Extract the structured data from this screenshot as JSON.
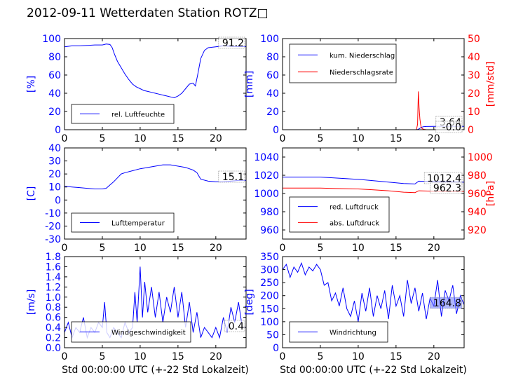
{
  "figure": {
    "title": "2012-09-11 Wetterdaten Station ROTZ□"
  },
  "colors": {
    "primary": "#0000ff",
    "secondary": "#ff0000",
    "axis": "#000000",
    "background": "#ffffff"
  },
  "chart_data": [
    {
      "id": "humidity",
      "type": "line",
      "xlim": [
        0,
        24
      ],
      "xticks": [
        0,
        5,
        10,
        15,
        20
      ],
      "ylim": [
        0,
        100
      ],
      "yticks": [
        0,
        20,
        40,
        60,
        80,
        100
      ],
      "ylabel": "[%]",
      "xlabel": "",
      "grid": false,
      "legend": "lower-left",
      "value_box": "91.2",
      "series": [
        {
          "name": "rel. Luftfeuchte",
          "color": "#0000ff",
          "axis": "left",
          "x": [
            0,
            1,
            2,
            3,
            4,
            5,
            5.5,
            6,
            6.3,
            6.6,
            7,
            7.5,
            8,
            8.5,
            9,
            9.5,
            10,
            10.5,
            11,
            11.5,
            12,
            12.5,
            13,
            13.5,
            14,
            14.5,
            15,
            15.5,
            16,
            16.5,
            17,
            17.3,
            17.6,
            18,
            18.5,
            19,
            20,
            21,
            22,
            23,
            24
          ],
          "y": [
            91,
            92,
            92,
            92.5,
            93,
            93,
            94,
            93.5,
            90,
            83,
            75,
            68,
            61,
            55,
            50,
            47,
            45,
            43,
            42,
            41,
            40,
            39,
            38,
            37,
            36,
            35,
            37,
            40,
            45,
            50,
            51,
            48,
            60,
            78,
            87,
            90,
            91,
            92,
            91.5,
            91.2,
            91.2
          ]
        }
      ]
    },
    {
      "id": "precipitation",
      "type": "line",
      "xlim": [
        0,
        24
      ],
      "xticks": [
        0,
        5,
        10,
        15,
        20
      ],
      "ylim": [
        0,
        100
      ],
      "yticks": [
        0,
        20,
        40,
        60,
        80,
        100
      ],
      "ylim2": [
        0,
        50
      ],
      "yticks2": [
        0,
        10,
        20,
        30,
        40,
        50
      ],
      "ylabel": "[mm]",
      "ylabel2": "[mm/std]",
      "xlabel": "",
      "grid": false,
      "legend": "upper-left",
      "value_boxes": [
        "3.64",
        "-0.0"
      ],
      "series": [
        {
          "name": "kum. Niederschlag",
          "color": "#0000ff",
          "axis": "left",
          "x": [
            0,
            17.6,
            17.9,
            18.1,
            18.3,
            18.6,
            19,
            20,
            22,
            24
          ],
          "y": [
            0,
            0,
            0.3,
            1.2,
            2.4,
            3.2,
            3.5,
            3.6,
            3.64,
            3.64
          ]
        },
        {
          "name": "Niederschlagsrate",
          "color": "#ff0000",
          "axis": "right",
          "x": [
            0,
            17.7,
            17.85,
            17.95,
            18.05,
            18.15,
            18.25,
            18.35,
            18.5,
            18.7,
            19,
            20,
            24
          ],
          "y": [
            0,
            0,
            3,
            21,
            12,
            6,
            3,
            1,
            0.5,
            0.2,
            0,
            0,
            0
          ]
        }
      ]
    },
    {
      "id": "temperature",
      "type": "line",
      "xlim": [
        0,
        24
      ],
      "xticks": [
        0,
        5,
        10,
        15,
        20
      ],
      "ylim": [
        -30,
        40
      ],
      "yticks": [
        -30,
        -20,
        -10,
        0,
        10,
        20,
        30,
        40
      ],
      "ylabel": "[C]",
      "xlabel": "",
      "grid": false,
      "legend": "lower-left",
      "value_box": "15.1",
      "series": [
        {
          "name": "Lufttemperatur",
          "color": "#0000ff",
          "axis": "left",
          "x": [
            0,
            1,
            2,
            3,
            4,
            5,
            5.5,
            6,
            6.5,
            7,
            7.5,
            8,
            9,
            10,
            11,
            12,
            13,
            14,
            15,
            16,
            16.5,
            17,
            17.5,
            18,
            19,
            20,
            21,
            22,
            23,
            24
          ],
          "y": [
            10.5,
            10,
            9.5,
            9,
            8.5,
            8.5,
            9,
            11.5,
            14,
            17,
            20,
            21,
            22.5,
            24,
            25,
            26,
            27,
            27,
            26,
            25,
            24,
            23,
            21,
            16,
            14.5,
            14,
            14,
            14.5,
            15,
            15.1
          ]
        }
      ]
    },
    {
      "id": "pressure",
      "type": "line",
      "xlim": [
        0,
        24
      ],
      "xticks": [
        0,
        5,
        10,
        15,
        20
      ],
      "ylim": [
        950,
        1050
      ],
      "yticks": [
        960,
        980,
        1000,
        1020,
        1040
      ],
      "ylim2": [
        910,
        1010
      ],
      "yticks2": [
        920,
        940,
        960,
        980,
        1000
      ],
      "ylabel": "",
      "ylabel2": "[hPa]",
      "xlabel": "",
      "grid": false,
      "legend": "lower-left",
      "value_boxes": [
        "1012.4",
        "962.3"
      ],
      "series": [
        {
          "name": "red. Luftdruck",
          "color": "#0000ff",
          "axis": "left",
          "x": [
            0,
            2,
            5,
            7,
            10,
            12,
            14,
            16,
            17.5,
            18,
            20,
            24
          ],
          "y": [
            1018,
            1018,
            1018,
            1017,
            1015.5,
            1014,
            1012.5,
            1011,
            1010.5,
            1013.5,
            1013,
            1012.4
          ]
        },
        {
          "name": "abs. Luftdruck",
          "color": "#ff0000",
          "axis": "right",
          "x": [
            0,
            2,
            5,
            7,
            10,
            12,
            14,
            16,
            17.5,
            18,
            20,
            24
          ],
          "y": [
            966,
            966,
            966,
            965.5,
            965,
            964,
            963,
            961.5,
            961,
            963,
            962.5,
            962.3
          ]
        }
      ]
    },
    {
      "id": "windspeed",
      "type": "line",
      "xlim": [
        0,
        24
      ],
      "xticks": [
        0,
        5,
        10,
        15,
        20
      ],
      "ylim": [
        0,
        1.8
      ],
      "yticks": [
        0.0,
        0.2,
        0.4,
        0.6,
        0.8,
        1.0,
        1.2,
        1.4,
        1.6,
        1.8
      ],
      "ylabel": "[m/s]",
      "xlabel": "Std 00:00:00 UTC (+-22 Std Lokalzeit)",
      "grid": false,
      "legend": "lower-left",
      "value_box": "0.4",
      "series": [
        {
          "name": "Windgeschwindigkeit",
          "color": "#0000ff",
          "axis": "left",
          "x": [
            0,
            0.5,
            1,
            1.5,
            2,
            2.5,
            3,
            3.5,
            4,
            4.5,
            5,
            5.3,
            5.6,
            6,
            6.5,
            7,
            7.5,
            8,
            8.5,
            9,
            9.3,
            9.6,
            10,
            10.3,
            10.6,
            11,
            11.5,
            12,
            12.5,
            13,
            13.5,
            14,
            14.5,
            15,
            15.5,
            16,
            16.5,
            17,
            17.5,
            18,
            18.5,
            19,
            19.5,
            20,
            20.5,
            21,
            21.5,
            22,
            22.5,
            23,
            23.5,
            24
          ],
          "y": [
            0.3,
            0.5,
            0.2,
            0.4,
            0.3,
            0.6,
            0.2,
            0.4,
            0.3,
            0.5,
            0.4,
            0.9,
            0.3,
            0.2,
            0.4,
            0.3,
            0.2,
            0.5,
            0.3,
            0.4,
            1.1,
            0.5,
            1.6,
            0.6,
            1.3,
            0.7,
            1.2,
            0.6,
            1.1,
            0.5,
            1.0,
            0.7,
            1.2,
            0.6,
            1.1,
            0.4,
            0.9,
            0.3,
            0.7,
            0.2,
            0.4,
            0.3,
            0.2,
            0.4,
            0.2,
            0.6,
            0.3,
            0.8,
            0.5,
            0.9,
            0.4,
            0.4
          ]
        }
      ]
    },
    {
      "id": "winddirection",
      "type": "line",
      "xlim": [
        0,
        24
      ],
      "xticks": [
        0,
        5,
        10,
        15,
        20
      ],
      "ylim": [
        0,
        350
      ],
      "yticks": [
        0,
        50,
        100,
        150,
        200,
        250,
        300,
        350
      ],
      "ylabel": "[deg]",
      "xlabel": "Std 00:00:00 UTC (+-22 Std Lokalzeit)",
      "grid": false,
      "legend": "lower-left",
      "value_box": "164.8",
      "series": [
        {
          "name": "Windrichtung",
          "color": "#0000ff",
          "axis": "left",
          "x": [
            0,
            0.5,
            1,
            1.5,
            2,
            2.5,
            3,
            3.5,
            4,
            4.5,
            5,
            5.5,
            6,
            6.5,
            7,
            7.5,
            8,
            8.5,
            9,
            9.5,
            10,
            10.5,
            11,
            11.5,
            12,
            12.5,
            13,
            13.5,
            14,
            14.5,
            15,
            15.5,
            16,
            16.5,
            17,
            17.5,
            18,
            18.5,
            19,
            19.5,
            20,
            20.5,
            21,
            21.5,
            22,
            22.5,
            23,
            23.5,
            24
          ],
          "y": [
            300,
            320,
            270,
            310,
            290,
            325,
            280,
            310,
            295,
            320,
            300,
            240,
            250,
            180,
            210,
            160,
            230,
            150,
            120,
            180,
            100,
            210,
            140,
            230,
            120,
            200,
            150,
            220,
            110,
            240,
            160,
            200,
            120,
            260,
            170,
            230,
            140,
            210,
            110,
            190,
            160,
            260,
            120,
            220,
            180,
            240,
            130,
            200,
            165
          ]
        }
      ]
    }
  ]
}
